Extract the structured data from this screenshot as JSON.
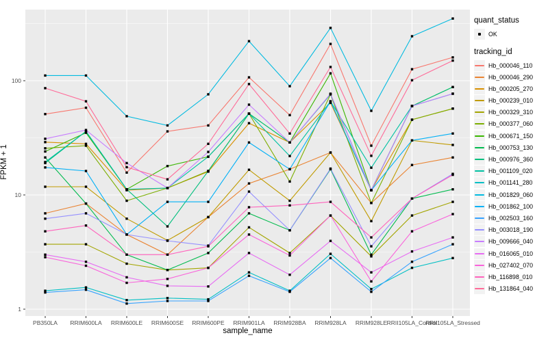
{
  "figure": {
    "x_axis_title": "sample_name",
    "y_axis_title": "FPKM + 1"
  },
  "legend": {
    "quant_status_title": "quant_status",
    "quant_status_items": [
      {
        "label": "OK",
        "symbol": "black-square-point"
      }
    ],
    "tracking_id_title": "tracking_id"
  },
  "colors": {
    "panel_bg": "#EBEBEB",
    "grid": "#FFFFFF",
    "point": "#000000",
    "axis_text": "#4D4D4D",
    "tick_mark": "#333333",
    "key_bg": "#F2F2F2"
  },
  "chart_data": {
    "type": "line",
    "title": "",
    "xlabel": "sample_name",
    "ylabel": "FPKM + 1",
    "y_scale": "log10",
    "y_ticks": [
      1,
      10,
      100
    ],
    "y_minor_ticks": [
      3.1623,
      31.623,
      316.23
    ],
    "ylim": [
      0.9,
      420
    ],
    "grid": true,
    "legend_position": "right",
    "point_marker": "black-square",
    "x_categories": [
      "PB350LA",
      "RRIM600LA",
      "RRIM600LE",
      "RRIM600SE",
      "RRIM600PE",
      "RRIM901LA",
      "RRIM928BA",
      "RRIM928LA",
      "RRIM928LE",
      "RRII105LA_Control",
      "RRII105LA_Stressed"
    ],
    "series": [
      {
        "name": "Hb_000046_110",
        "color": "#F8766D",
        "quant_status": "OK",
        "values": [
          51,
          58,
          15.7,
          36,
          40.6,
          107,
          50,
          210,
          27,
          126,
          160
        ]
      },
      {
        "name": "Hb_000046_290",
        "color": "#EA8331",
        "quant_status": "OK",
        "values": [
          6.9,
          8.4,
          4.5,
          3.0,
          6.4,
          12.6,
          16.8,
          23.5,
          8.5,
          18.3,
          21.3
        ]
      },
      {
        "name": "Hb_000205_270",
        "color": "#D89000",
        "quant_status": "OK",
        "values": [
          29,
          28,
          11.0,
          11.5,
          16.0,
          42.5,
          28.8,
          64,
          11.0,
          45.6,
          57
        ]
      },
      {
        "name": "Hb_000239_010",
        "color": "#C09B00",
        "quant_status": "OK",
        "values": [
          11.8,
          11.8,
          6.2,
          4.0,
          6.4,
          16.6,
          8.9,
          23.5,
          5.9,
          30,
          27.4
        ]
      },
      {
        "name": "Hb_000329_310",
        "color": "#A3A500",
        "quant_status": "OK",
        "values": [
          3.7,
          3.7,
          2.5,
          2.2,
          2.3,
          5.2,
          3.1,
          6.6,
          2.9,
          6.6,
          8.7
        ]
      },
      {
        "name": "Hb_000377_060",
        "color": "#7CAE00",
        "quant_status": "OK",
        "values": [
          25.6,
          27,
          8.9,
          11.5,
          16.2,
          51.5,
          13.1,
          76,
          8.5,
          45.6,
          57
        ]
      },
      {
        "name": "Hb_000671_150",
        "color": "#39B600",
        "quant_status": "OK",
        "values": [
          24,
          35,
          11.2,
          17.9,
          21.6,
          51.5,
          28.8,
          116,
          11.0,
          60,
          88
        ]
      },
      {
        "name": "Hb_000753_130",
        "color": "#00BB4E",
        "quant_status": "OK",
        "values": [
          21.3,
          8.4,
          3.0,
          2.2,
          3.1,
          6.9,
          4.9,
          16.8,
          3.0,
          9.3,
          11.2
        ]
      },
      {
        "name": "Hb_000976_360",
        "color": "#00BF7D",
        "quant_status": "OK",
        "values": [
          19,
          36,
          11.2,
          5.3,
          16.2,
          51.5,
          28.8,
          76,
          11.0,
          60,
          88
        ]
      },
      {
        "name": "Hb_001109_020",
        "color": "#00C1A3",
        "quant_status": "OK",
        "values": [
          19.4,
          36,
          11.2,
          11.5,
          21.6,
          51.5,
          21.9,
          66,
          17.3,
          60,
          77
        ]
      },
      {
        "name": "Hb_001141_280",
        "color": "#00BFC4",
        "quant_status": "OK",
        "values": [
          1.45,
          1.55,
          1.2,
          1.25,
          1.22,
          2.1,
          1.45,
          3.05,
          1.5,
          2.3,
          2.8
        ]
      },
      {
        "name": "Hb_001829_060",
        "color": "#00BAE0",
        "quant_status": "OK",
        "values": [
          111,
          111,
          48.9,
          40.6,
          76,
          222,
          89.6,
          290,
          54.5,
          245,
          350
        ]
      },
      {
        "name": "Hb_001862_100",
        "color": "#00B0F6",
        "quant_status": "OK",
        "values": [
          17.4,
          16.2,
          4.5,
          8.7,
          8.7,
          28.8,
          16.8,
          66,
          11.0,
          30,
          34.5
        ]
      },
      {
        "name": "Hb_002503_160",
        "color": "#35A2FF",
        "quant_status": "OK",
        "values": [
          1.4,
          1.48,
          1.12,
          1.18,
          1.18,
          1.96,
          1.42,
          2.8,
          1.42,
          2.6,
          3.7
        ]
      },
      {
        "name": "Hb_003018_190",
        "color": "#9590FF",
        "quant_status": "OK",
        "values": [
          6.2,
          6.9,
          4.5,
          3.97,
          3.6,
          10.7,
          4.9,
          17,
          3.55,
          9.3,
          15.3
        ]
      },
      {
        "name": "Hb_009666_040",
        "color": "#C77CFF",
        "quant_status": "OK",
        "values": [
          31,
          37,
          19,
          11.5,
          23.8,
          61.7,
          28.8,
          77,
          11.0,
          60,
          77
        ]
      },
      {
        "name": "Hb_016065_010",
        "color": "#E76BF3",
        "quant_status": "OK",
        "values": [
          3.0,
          2.6,
          1.9,
          1.6,
          1.58,
          3.1,
          2.0,
          3.96,
          2.1,
          3.2,
          4.25
        ]
      },
      {
        "name": "Hb_027402_070",
        "color": "#FA62DB",
        "quant_status": "OK",
        "values": [
          2.85,
          2.4,
          1.7,
          1.84,
          2.3,
          4.5,
          2.95,
          6.6,
          1.75,
          4.8,
          6.8
        ]
      },
      {
        "name": "Hb_116898_010",
        "color": "#FF62BC",
        "quant_status": "OK",
        "values": [
          4.8,
          5.4,
          3.0,
          3.0,
          3.55,
          7.8,
          8.1,
          8.7,
          4.25,
          9.3,
          15.0
        ]
      },
      {
        "name": "Hb_131864_040",
        "color": "#FF6A98",
        "quant_status": "OK",
        "values": [
          86,
          66,
          17.5,
          13.7,
          28,
          93.5,
          34.5,
          132,
          22,
          101,
          150
        ]
      }
    ]
  }
}
